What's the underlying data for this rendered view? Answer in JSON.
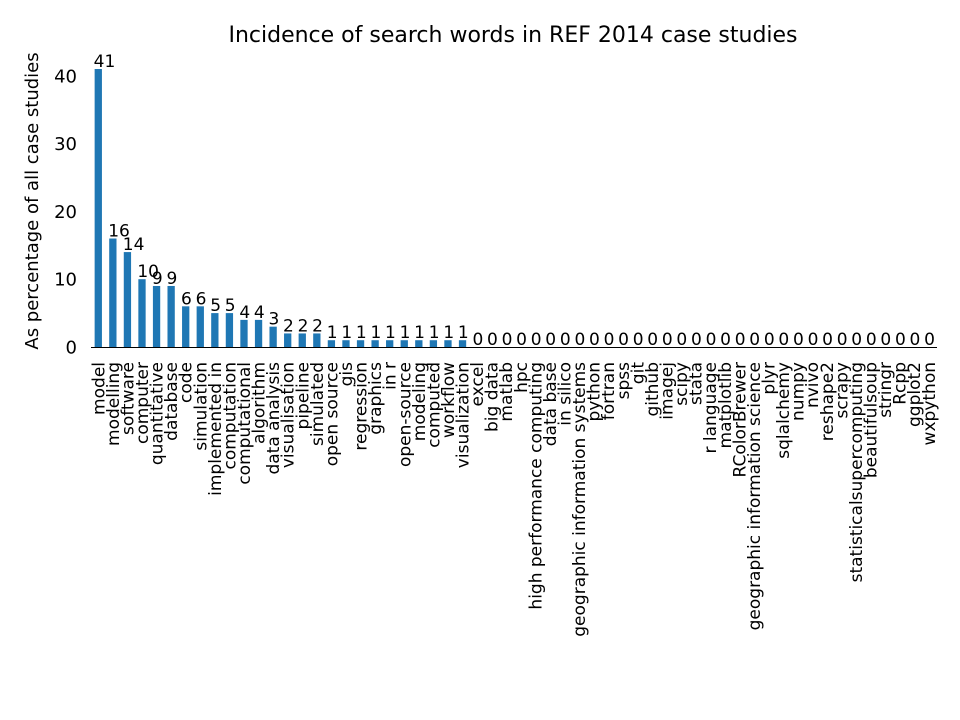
{
  "chart_data": {
    "type": "bar",
    "title": "Incidence of search words in REF 2014 case studies",
    "xlabel": "",
    "ylabel": "As percentage of all case studies",
    "ylim": [
      0,
      43
    ],
    "yticks": [
      0,
      10,
      20,
      30,
      40
    ],
    "grid": false,
    "color": "#1f77b4",
    "categories": [
      "model",
      "modelling",
      "software",
      "computer",
      "quantitative",
      "database",
      "code",
      "simulation",
      "implemented in",
      "computation",
      "computational",
      "algorithm",
      "data analysis",
      "visualisation",
      "pipeline",
      "simulated",
      "open source",
      "gis",
      "regression",
      "graphics",
      "in r",
      "open-source",
      "modeling",
      "computed",
      "workflow",
      "visualization",
      "excel",
      "big data",
      "matlab",
      "hpc",
      "high performance computing",
      "data base",
      "in silico",
      "geographic information systems",
      "python",
      "fortran",
      "spss",
      "git",
      "github",
      "imagej",
      "scipy",
      "stata",
      "r language",
      "matplotlib",
      "RColorBrewer",
      "geographic information science",
      "plyr",
      "sqlalchemy",
      "numpy",
      "nvivo",
      "reshape2",
      "scrapy",
      "statisticalsupercomputing",
      "beautifulsoup",
      "stringr",
      "Rcpp",
      "ggplot2",
      "wxpython"
    ],
    "values": [
      41,
      16,
      14,
      10,
      9,
      9,
      6,
      6,
      5,
      5,
      4,
      4,
      3,
      2,
      2,
      2,
      1,
      1,
      1,
      1,
      1,
      1,
      1,
      1,
      1,
      1,
      0,
      0,
      0,
      0,
      0,
      0,
      0,
      0,
      0,
      0,
      0,
      0,
      0,
      0,
      0,
      0,
      0,
      0,
      0,
      0,
      0,
      0,
      0,
      0,
      0,
      0,
      0,
      0,
      0,
      0,
      0,
      0
    ],
    "data_labels": [
      "41",
      "16",
      "14",
      "10",
      "9",
      "9",
      "6",
      "6",
      "5",
      "5",
      "4",
      "4",
      "3",
      "2",
      "2",
      "2",
      "1",
      "1",
      "1",
      "1",
      "1",
      "1",
      "1",
      "1",
      "1",
      "1",
      "0",
      "0",
      "0",
      "0",
      "0",
      "0",
      "0",
      "0",
      "0",
      "0",
      "0",
      "0",
      "0",
      "0",
      "0",
      "0",
      "0",
      "0",
      "0",
      "0",
      "0",
      "0",
      "0",
      "0",
      "0",
      "0",
      "0",
      "0",
      "0",
      "0",
      "0",
      "0"
    ]
  }
}
